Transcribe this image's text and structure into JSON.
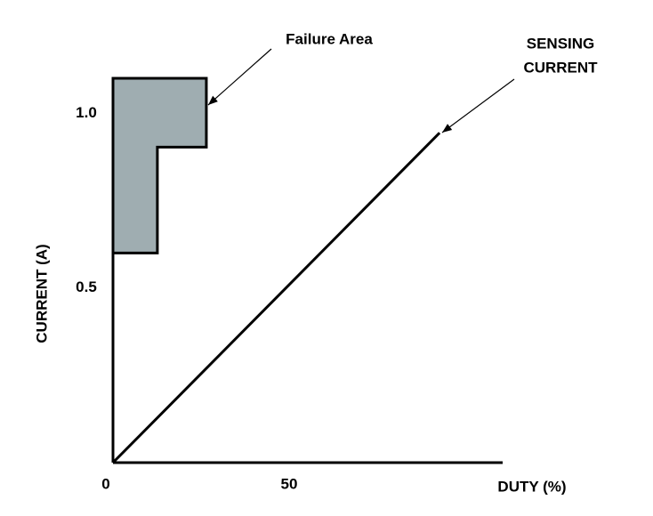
{
  "chart_data": {
    "type": "line",
    "x_label": "DUTY (%)",
    "y_label": "CURRENT (A)",
    "xlim": [
      0,
      110.6
    ],
    "ylim": [
      0,
      1.1
    ],
    "xticks": [
      0,
      50
    ],
    "yticks": [
      0.5,
      {
        "value": 1,
        "label": "1.0"
      }
    ],
    "series": [
      {
        "name": "SENSING CURRENT",
        "kind": "line",
        "color": "#000000",
        "x": [
          0,
          92.7
        ],
        "values": [
          0,
          0.944
        ]
      },
      {
        "name": "Failure Area",
        "kind": "polygon",
        "color": "#9fadb1",
        "x": [
          0,
          26.5,
          26.5,
          12.6,
          12.6,
          0
        ],
        "values": [
          1.1,
          1.1,
          0.903,
          0.903,
          0.6,
          0.6
        ]
      }
    ],
    "annotations": [
      {
        "lines": [
          "Failure Area"
        ]
      },
      {
        "lines": [
          "SENSING",
          "CURRENT"
        ]
      }
    ]
  }
}
